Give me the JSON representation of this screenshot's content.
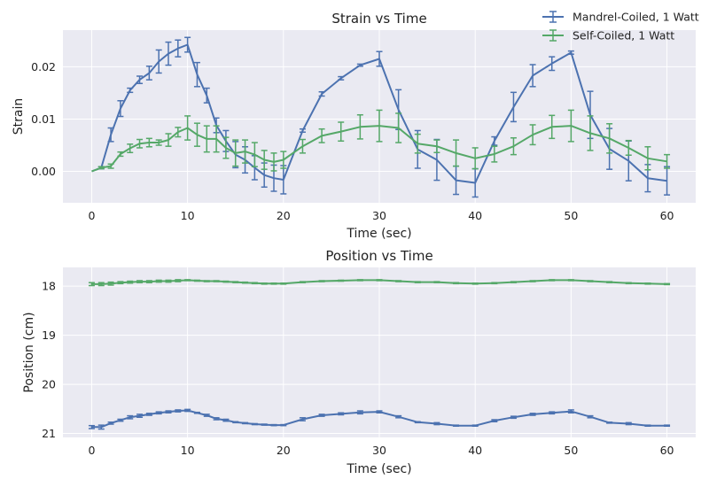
{
  "figure": {
    "background": "#ffffff"
  },
  "style": {
    "plot_bg": "#EAEAF2",
    "grid": "#ffffff",
    "text": "#222222"
  },
  "legend": {
    "placement": "upper-right",
    "entries": [
      {
        "label": "Mandrel-Coiled, 1 Watt",
        "color": "#4C72B0"
      },
      {
        "label": "Self-Coiled, 1 Watt",
        "color": "#55A868"
      }
    ]
  },
  "chart_data": [
    {
      "type": "line",
      "title": "Strain vs Time",
      "xlabel": "Time (sec)",
      "ylabel": "Strain",
      "xlim": [
        -3,
        63
      ],
      "ylim": [
        -0.006,
        0.027
      ],
      "xticks": [
        0,
        10,
        20,
        30,
        40,
        50,
        60
      ],
      "yticks": [
        0.0,
        0.01,
        0.02
      ],
      "ytick_labels": [
        "0.00",
        "0.01",
        "0.02"
      ],
      "grid": true,
      "error_bars": true,
      "series": [
        {
          "name": "Mandrel-Coiled, 1 Watt",
          "color": "#4C72B0",
          "x": [
            0,
            1,
            2,
            3,
            4,
            5,
            6,
            7,
            8,
            9,
            10,
            11,
            12,
            13,
            14,
            15,
            16,
            17,
            18,
            19,
            20,
            22,
            24,
            26,
            28,
            30,
            32,
            34,
            36,
            38,
            40,
            42,
            44,
            46,
            48,
            50,
            52,
            54,
            56,
            58,
            60
          ],
          "y": [
            0.0,
            0.0007,
            0.007,
            0.012,
            0.0155,
            0.0175,
            0.0188,
            0.021,
            0.0225,
            0.0235,
            0.0242,
            0.0185,
            0.0145,
            0.0088,
            0.0058,
            0.0032,
            0.0022,
            0.0007,
            -0.0007,
            -0.0013,
            -0.0016,
            0.0078,
            0.0148,
            0.0178,
            0.0203,
            0.0215,
            0.0118,
            0.0042,
            0.0022,
            -0.0017,
            -0.0022,
            0.0058,
            0.0123,
            0.0183,
            0.0206,
            0.0227,
            0.0108,
            0.0043,
            0.002,
            -0.0013,
            -0.0018
          ],
          "yerr": [
            0.0,
            0.0002,
            0.0013,
            0.0015,
            0.0004,
            0.0007,
            0.0013,
            0.0022,
            0.0022,
            0.0016,
            0.0014,
            0.0023,
            0.0014,
            0.0014,
            0.002,
            0.0025,
            0.0025,
            0.0023,
            0.0023,
            0.0025,
            0.0027,
            0.0003,
            0.0004,
            0.0003,
            0.0002,
            0.0014,
            0.0038,
            0.0036,
            0.0039,
            0.0027,
            0.0027,
            0.0008,
            0.0028,
            0.0021,
            0.0013,
            0.0003,
            0.0045,
            0.0039,
            0.0038,
            0.0026,
            0.0027
          ]
        },
        {
          "name": "Self-Coiled, 1 Watt",
          "color": "#55A868",
          "x": [
            0,
            1,
            2,
            3,
            4,
            5,
            6,
            7,
            8,
            9,
            10,
            11,
            12,
            13,
            14,
            15,
            16,
            17,
            18,
            19,
            20,
            22,
            24,
            26,
            28,
            30,
            32,
            34,
            36,
            38,
            40,
            42,
            44,
            46,
            48,
            50,
            52,
            54,
            56,
            58,
            60
          ],
          "y": [
            0.0,
            0.0007,
            0.001,
            0.0033,
            0.0044,
            0.0053,
            0.0055,
            0.0055,
            0.006,
            0.0075,
            0.0083,
            0.007,
            0.0062,
            0.0062,
            0.0045,
            0.0035,
            0.0038,
            0.0032,
            0.0022,
            0.0018,
            0.0022,
            0.0048,
            0.0068,
            0.0076,
            0.0085,
            0.0087,
            0.0083,
            0.0053,
            0.0048,
            0.0035,
            0.0025,
            0.0033,
            0.0048,
            0.007,
            0.0085,
            0.0087,
            0.0073,
            0.0063,
            0.0045,
            0.0025,
            0.0019
          ],
          "yerr": [
            0.0,
            0.0002,
            0.0004,
            0.0004,
            0.0008,
            0.0008,
            0.0008,
            0.0005,
            0.0012,
            0.0009,
            0.0023,
            0.0022,
            0.0025,
            0.0025,
            0.002,
            0.0025,
            0.0022,
            0.0023,
            0.0018,
            0.0017,
            0.0016,
            0.0013,
            0.0013,
            0.0018,
            0.0023,
            0.003,
            0.0028,
            0.0018,
            0.0012,
            0.0025,
            0.002,
            0.0015,
            0.0016,
            0.0019,
            0.0022,
            0.003,
            0.0033,
            0.0028,
            0.0014,
            0.0022,
            0.0013
          ]
        }
      ]
    },
    {
      "type": "line",
      "title": "Position vs Time",
      "xlabel": "Time (sec)",
      "ylabel": "Position (cm)",
      "xlim": [
        -3,
        63
      ],
      "ylim": [
        21.08,
        17.62
      ],
      "y_inverted": true,
      "xticks": [
        0,
        10,
        20,
        30,
        40,
        50,
        60
      ],
      "yticks": [
        18,
        19,
        20,
        21
      ],
      "ytick_labels": [
        "18",
        "19",
        "20",
        "21"
      ],
      "grid": true,
      "error_bars": true,
      "series": [
        {
          "name": "Mandrel-Coiled, 1 Watt",
          "color": "#4C72B0",
          "x": [
            0,
            1,
            2,
            3,
            4,
            5,
            6,
            7,
            8,
            9,
            10,
            11,
            12,
            13,
            14,
            15,
            16,
            17,
            18,
            19,
            20,
            22,
            24,
            26,
            28,
            30,
            32,
            34,
            36,
            38,
            40,
            42,
            44,
            46,
            48,
            50,
            52,
            54,
            56,
            58,
            60
          ],
          "y": [
            20.87,
            20.87,
            20.79,
            20.73,
            20.67,
            20.64,
            20.61,
            20.58,
            20.56,
            20.54,
            20.53,
            20.58,
            20.63,
            20.7,
            20.73,
            20.77,
            20.79,
            20.81,
            20.82,
            20.83,
            20.83,
            20.71,
            20.63,
            20.6,
            20.57,
            20.56,
            20.66,
            20.77,
            20.8,
            20.84,
            20.84,
            20.74,
            20.67,
            20.61,
            20.58,
            20.55,
            20.66,
            20.78,
            20.8,
            20.84,
            20.84
          ],
          "yerr": [
            0.03,
            0.04,
            0.02,
            0.02,
            0.03,
            0.03,
            0.02,
            0.02,
            0.02,
            0.02,
            0.02,
            0.01,
            0.02,
            0.02,
            0.02,
            0.01,
            0.01,
            0.01,
            0.01,
            0.01,
            0.01,
            0.03,
            0.02,
            0.02,
            0.03,
            0.02,
            0.02,
            0.01,
            0.02,
            0.01,
            0.01,
            0.02,
            0.02,
            0.02,
            0.02,
            0.03,
            0.02,
            0.01,
            0.02,
            0.01,
            0.01
          ]
        },
        {
          "name": "Self-Coiled, 1 Watt",
          "color": "#55A868",
          "x": [
            0,
            1,
            2,
            3,
            4,
            5,
            6,
            7,
            8,
            9,
            10,
            11,
            12,
            13,
            14,
            15,
            16,
            17,
            18,
            19,
            20,
            22,
            24,
            26,
            28,
            30,
            32,
            34,
            36,
            38,
            40,
            42,
            44,
            46,
            48,
            50,
            52,
            54,
            56,
            58,
            60
          ],
          "y": [
            17.96,
            17.96,
            17.95,
            17.93,
            17.92,
            17.91,
            17.91,
            17.9,
            17.9,
            17.89,
            17.88,
            17.89,
            17.9,
            17.9,
            17.91,
            17.92,
            17.93,
            17.94,
            17.95,
            17.95,
            17.95,
            17.92,
            17.9,
            17.89,
            17.88,
            17.88,
            17.9,
            17.92,
            17.92,
            17.94,
            17.95,
            17.94,
            17.92,
            17.9,
            17.88,
            17.88,
            17.9,
            17.92,
            17.94,
            17.95,
            17.96
          ],
          "yerr": [
            0.03,
            0.03,
            0.03,
            0.02,
            0.02,
            0.02,
            0.02,
            0.02,
            0.02,
            0.02,
            0.01,
            0.01,
            0.01,
            0.01,
            0.01,
            0.01,
            0.01,
            0.01,
            0.01,
            0.01,
            0.01,
            0.01,
            0.01,
            0.01,
            0.01,
            0.01,
            0.01,
            0.01,
            0.01,
            0.01,
            0.01,
            0.01,
            0.01,
            0.01,
            0.01,
            0.01,
            0.01,
            0.01,
            0.01,
            0.01,
            0.01
          ]
        }
      ]
    }
  ]
}
